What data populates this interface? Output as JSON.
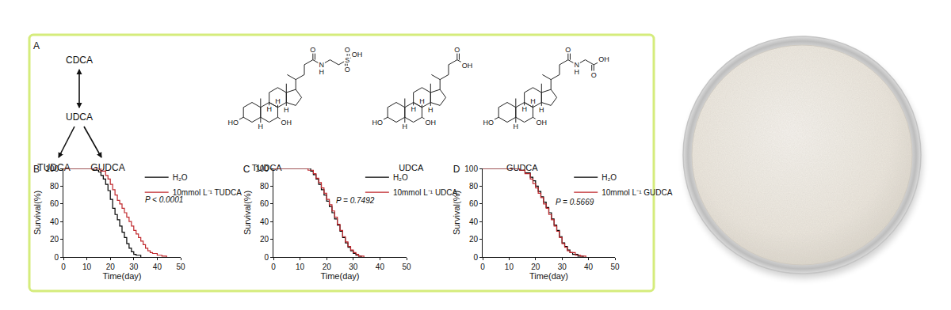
{
  "panel_a": {
    "label": "A",
    "pathway": {
      "nodes": [
        "CDCA",
        "UDCA",
        "TUDCA",
        "GUDCA"
      ]
    },
    "structures": [
      {
        "name": "TUDCA",
        "atoms": [
          "HO",
          "H",
          "H",
          "H",
          "H",
          "OH",
          "O",
          "N",
          "H",
          "S",
          "O",
          "O",
          "OH"
        ]
      },
      {
        "name": "UDCA",
        "atoms": [
          "HO",
          "H",
          "H",
          "H",
          "H",
          "OH",
          "O",
          "OH"
        ]
      },
      {
        "name": "GUDCA",
        "atoms": [
          "HO",
          "H",
          "H",
          "H",
          "H",
          "OH",
          "O",
          "N",
          "H",
          "O",
          "OH"
        ]
      }
    ]
  },
  "chart_data": [
    {
      "label": "B",
      "type": "line",
      "line_style": "step",
      "xlabel": "Time(day)",
      "ylabel": "Survival(%)",
      "xlim": [
        0,
        50
      ],
      "ylim": [
        0,
        100
      ],
      "xticks": [
        0,
        10,
        20,
        30,
        40,
        50
      ],
      "yticks": [
        0,
        20,
        40,
        60,
        80,
        100
      ],
      "grid": false,
      "legend": "upper right",
      "annotations": [
        "P < 0.0001"
      ],
      "series": [
        {
          "name": "H₂O",
          "color": "#000000",
          "x": [
            0,
            12,
            13,
            15,
            16,
            17,
            18,
            19,
            20,
            21,
            22,
            23,
            24,
            25,
            26,
            27,
            28,
            29,
            30,
            31,
            33
          ],
          "values": [
            100,
            100,
            98,
            96,
            92,
            88,
            82,
            75,
            65,
            55,
            48,
            42,
            35,
            28,
            22,
            15,
            10,
            6,
            3,
            2,
            0
          ]
        },
        {
          "name": "10mmol L⁻¹ TUDCA",
          "color": "#c0282d",
          "x": [
            0,
            14,
            16,
            18,
            19,
            20,
            21,
            22,
            23,
            24,
            25,
            26,
            27,
            28,
            29,
            30,
            31,
            32,
            33,
            34,
            35,
            36,
            37,
            38,
            40,
            42,
            44
          ],
          "values": [
            100,
            100,
            97,
            92,
            88,
            82,
            76,
            70,
            64,
            60,
            55,
            50,
            45,
            40,
            35,
            30,
            26,
            22,
            18,
            14,
            10,
            7,
            5,
            4,
            2,
            1,
            0
          ]
        }
      ]
    },
    {
      "label": "C",
      "type": "line",
      "line_style": "step",
      "xlabel": "Time(day)",
      "ylabel": "Survival(%)",
      "xlim": [
        0,
        50
      ],
      "ylim": [
        0,
        100
      ],
      "xticks": [
        0,
        10,
        20,
        30,
        40,
        50
      ],
      "yticks": [
        0,
        20,
        40,
        60,
        80,
        100
      ],
      "grid": false,
      "legend": "upper right",
      "annotations": [
        "P = 0.7492"
      ],
      "series": [
        {
          "name": "H₂O",
          "color": "#000000",
          "x": [
            0,
            12,
            14,
            15,
            16,
            17,
            18,
            19,
            20,
            21,
            22,
            23,
            24,
            25,
            26,
            27,
            28,
            29,
            30,
            31,
            32,
            33
          ],
          "values": [
            100,
            100,
            97,
            93,
            88,
            82,
            76,
            70,
            63,
            57,
            50,
            43,
            36,
            29,
            22,
            16,
            11,
            7,
            4,
            2,
            1,
            0
          ]
        },
        {
          "name": "10mmol L⁻¹ UDCA",
          "color": "#c0282d",
          "x": [
            0,
            13,
            15,
            16,
            17,
            18,
            19,
            20,
            21,
            22,
            23,
            24,
            25,
            26,
            27,
            28,
            29,
            30,
            31,
            32,
            34
          ],
          "values": [
            100,
            98,
            94,
            89,
            84,
            78,
            72,
            65,
            59,
            52,
            45,
            37,
            30,
            23,
            17,
            12,
            8,
            5,
            3,
            1,
            0
          ]
        }
      ]
    },
    {
      "label": "D",
      "type": "line",
      "line_style": "step",
      "xlabel": "Time(day)",
      "ylabel": "Survival(%)",
      "xlim": [
        0,
        50
      ],
      "ylim": [
        0,
        100
      ],
      "xticks": [
        0,
        10,
        20,
        30,
        40,
        50
      ],
      "yticks": [
        0,
        20,
        40,
        60,
        80,
        100
      ],
      "grid": false,
      "legend": "upper right",
      "annotations": [
        "P = 0.5669"
      ],
      "series": [
        {
          "name": "H₂O",
          "color": "#000000",
          "x": [
            0,
            14,
            16,
            18,
            19,
            20,
            21,
            22,
            23,
            24,
            25,
            26,
            27,
            28,
            29,
            30,
            31,
            32,
            33,
            34,
            36,
            38
          ],
          "values": [
            100,
            98,
            95,
            90,
            86,
            80,
            74,
            68,
            62,
            56,
            50,
            43,
            36,
            30,
            23,
            16,
            12,
            8,
            5,
            3,
            1,
            0
          ]
        },
        {
          "name": "10mmol L⁻¹ GUDCA",
          "color": "#c0282d",
          "x": [
            0,
            14,
            16,
            18,
            19,
            20,
            21,
            22,
            23,
            24,
            25,
            26,
            27,
            28,
            29,
            30,
            31,
            32,
            33,
            35,
            37,
            39
          ],
          "values": [
            100,
            98,
            94,
            88,
            83,
            78,
            72,
            67,
            60,
            55,
            48,
            42,
            35,
            29,
            22,
            15,
            11,
            7,
            5,
            2,
            1,
            0
          ]
        }
      ]
    }
  ]
}
